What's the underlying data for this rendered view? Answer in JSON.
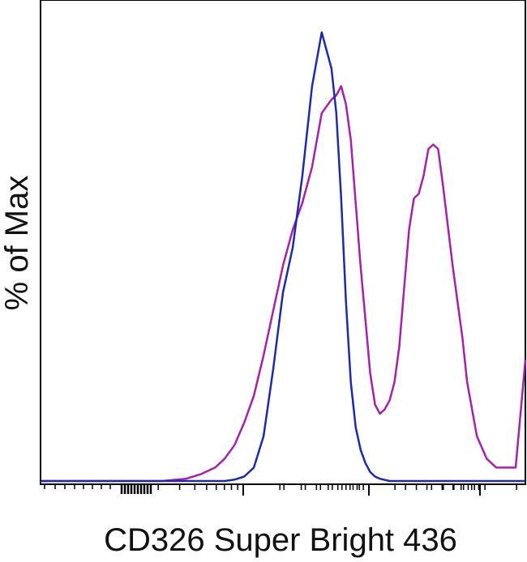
{
  "chart_data": {
    "type": "line",
    "title": "",
    "xlabel": "CD326 Super Bright 436",
    "ylabel": "% of Max",
    "xscale": "biexponential (log-like)",
    "ylim": [
      0,
      100
    ],
    "grid": false,
    "legend": "none",
    "series": [
      {
        "color": "#a322a8",
        "x": [
          0,
          5,
          10,
          15,
          20,
          25,
          30,
          33,
          36,
          38,
          40,
          42,
          44,
          46,
          48,
          50,
          52,
          54,
          56,
          58,
          60,
          61,
          62,
          63,
          64,
          65,
          66,
          67,
          68,
          69,
          70,
          71,
          72,
          73,
          74,
          75,
          76,
          77,
          78,
          79,
          80,
          81,
          82,
          83,
          84,
          85,
          86,
          87,
          88,
          90,
          92,
          94,
          96,
          98,
          100
        ],
        "y": [
          0,
          0,
          0,
          0,
          0,
          0,
          0.5,
          1.5,
          3,
          5,
          8,
          13,
          19,
          28,
          38,
          48,
          56,
          62,
          70,
          82,
          85,
          86,
          88,
          84,
          76,
          62,
          48,
          36,
          24,
          17,
          15,
          16,
          18,
          22,
          30,
          43,
          56,
          63,
          64,
          68,
          74,
          75,
          74,
          66,
          57,
          48,
          40,
          32,
          22,
          10,
          5,
          3,
          3,
          3,
          27
        ]
      },
      {
        "color": "#1e2aa8",
        "x": [
          0,
          10,
          20,
          25,
          30,
          35,
          38,
          40,
          42,
          44,
          46,
          48,
          50,
          52,
          54,
          56,
          58,
          60,
          61,
          62,
          63,
          64,
          65,
          66,
          67,
          68,
          69,
          70,
          72,
          75,
          80,
          90,
          100
        ],
        "y": [
          0,
          0,
          0,
          0,
          0,
          0,
          0,
          0.3,
          1,
          3,
          10,
          25,
          42,
          52,
          68,
          88,
          100,
          92,
          82,
          63,
          40,
          22,
          12,
          7,
          4,
          2,
          1,
          0.5,
          0,
          0,
          0,
          0,
          0
        ]
      }
    ]
  }
}
